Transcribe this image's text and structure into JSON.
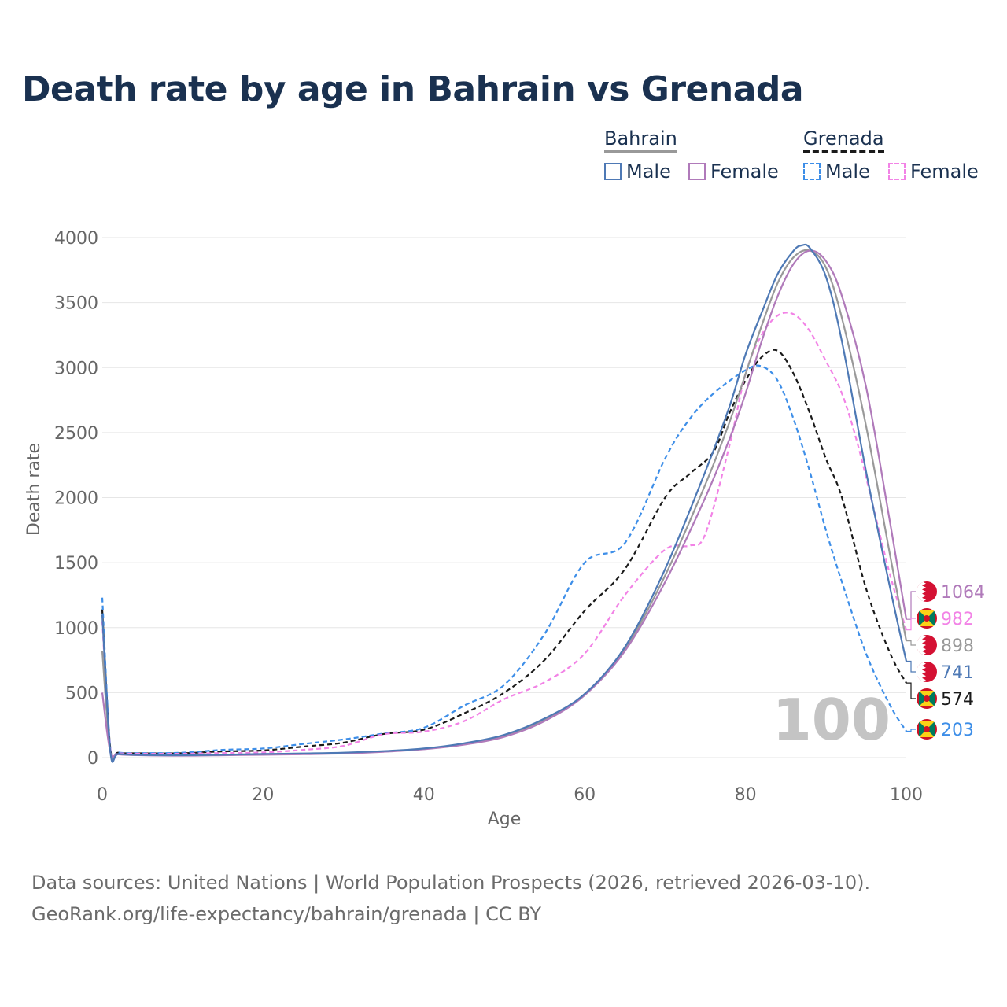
{
  "title": "Death rate by age in Bahrain vs Grenada",
  "legend": {
    "bahrain": {
      "label": "Bahrain",
      "male": "Male",
      "female": "Female"
    },
    "grenada": {
      "label": "Grenada",
      "male": "Male",
      "female": "Female"
    }
  },
  "colors": {
    "bahrain_male": "#4e79b5",
    "bahrain_female": "#b07aba",
    "bahrain_total": "#999999",
    "grenada_male": "#3d8ee8",
    "grenada_female": "#f283e6",
    "grenada_total": "#1a1a1a",
    "grid": "#e6e6e6",
    "axis_text": "#666666"
  },
  "footer": {
    "line1": "Data sources: United Nations | World Population Prospects (2026, retrieved 2026-03-10).",
    "line2": "GeoRank.org/life-expectancy/bahrain/grenada | CC BY"
  },
  "chart_data": {
    "type": "line",
    "title": "Death rate by age in Bahrain vs Grenada",
    "xlabel": "Age",
    "ylabel": "Death rate",
    "xlim": [
      0,
      100
    ],
    "ylim": [
      0,
      4000
    ],
    "xticks": [
      "0",
      "20",
      "40",
      "60",
      "80",
      "100"
    ],
    "yticks": [
      "0",
      "500",
      "1000",
      "1500",
      "2000",
      "2500",
      "3000",
      "3500",
      "4000"
    ],
    "watermark": "100",
    "series": [
      {
        "name": "Bahrain Male",
        "country": "Bahrain",
        "sex": "Male",
        "color": "#4e79b5",
        "dash": false,
        "end_label": "741",
        "points": [
          [
            0,
            1100
          ],
          [
            1,
            50
          ],
          [
            2,
            28
          ],
          [
            5,
            20
          ],
          [
            10,
            18
          ],
          [
            15,
            22
          ],
          [
            20,
            28
          ],
          [
            25,
            32
          ],
          [
            30,
            38
          ],
          [
            35,
            50
          ],
          [
            40,
            70
          ],
          [
            45,
            110
          ],
          [
            50,
            175
          ],
          [
            55,
            300
          ],
          [
            60,
            490
          ],
          [
            65,
            850
          ],
          [
            70,
            1450
          ],
          [
            75,
            2200
          ],
          [
            78,
            2700
          ],
          [
            80,
            3100
          ],
          [
            82,
            3420
          ],
          [
            84,
            3720
          ],
          [
            86,
            3900
          ],
          [
            87,
            3940
          ],
          [
            88,
            3920
          ],
          [
            90,
            3700
          ],
          [
            92,
            3200
          ],
          [
            95,
            2200
          ],
          [
            98,
            1300
          ],
          [
            100,
            741
          ]
        ]
      },
      {
        "name": "Bahrain Female",
        "country": "Bahrain",
        "sex": "Female",
        "color": "#b07aba",
        "dash": false,
        "end_label": "1064",
        "points": [
          [
            0,
            500
          ],
          [
            1,
            45
          ],
          [
            2,
            25
          ],
          [
            5,
            18
          ],
          [
            10,
            15
          ],
          [
            15,
            18
          ],
          [
            20,
            22
          ],
          [
            25,
            26
          ],
          [
            30,
            32
          ],
          [
            35,
            45
          ],
          [
            40,
            65
          ],
          [
            45,
            100
          ],
          [
            50,
            160
          ],
          [
            55,
            280
          ],
          [
            60,
            480
          ],
          [
            65,
            820
          ],
          [
            70,
            1350
          ],
          [
            75,
            2000
          ],
          [
            78,
            2450
          ],
          [
            80,
            2800
          ],
          [
            82,
            3200
          ],
          [
            84,
            3550
          ],
          [
            86,
            3800
          ],
          [
            88,
            3900
          ],
          [
            90,
            3820
          ],
          [
            92,
            3550
          ],
          [
            95,
            2850
          ],
          [
            98,
            1800
          ],
          [
            100,
            1064
          ]
        ]
      },
      {
        "name": "Bahrain Total",
        "country": "Bahrain",
        "sex": "Total",
        "color": "#999999",
        "dash": false,
        "end_label": "898",
        "points": [
          [
            0,
            820
          ],
          [
            1,
            48
          ],
          [
            2,
            27
          ],
          [
            5,
            19
          ],
          [
            10,
            17
          ],
          [
            15,
            20
          ],
          [
            20,
            25
          ],
          [
            25,
            29
          ],
          [
            30,
            35
          ],
          [
            35,
            48
          ],
          [
            40,
            68
          ],
          [
            45,
            105
          ],
          [
            50,
            168
          ],
          [
            55,
            290
          ],
          [
            60,
            485
          ],
          [
            65,
            835
          ],
          [
            70,
            1400
          ],
          [
            75,
            2100
          ],
          [
            78,
            2580
          ],
          [
            80,
            2950
          ],
          [
            82,
            3320
          ],
          [
            84,
            3650
          ],
          [
            86,
            3850
          ],
          [
            88,
            3900
          ],
          [
            90,
            3770
          ],
          [
            92,
            3380
          ],
          [
            95,
            2550
          ],
          [
            98,
            1550
          ],
          [
            100,
            898
          ]
        ]
      },
      {
        "name": "Grenada Male",
        "country": "Grenada",
        "sex": "Male",
        "color": "#3d8ee8",
        "dash": true,
        "end_label": "203",
        "points": [
          [
            0,
            1230
          ],
          [
            1,
            80
          ],
          [
            2,
            40
          ],
          [
            5,
            35
          ],
          [
            10,
            38
          ],
          [
            15,
            60
          ],
          [
            20,
            70
          ],
          [
            25,
            105
          ],
          [
            30,
            140
          ],
          [
            35,
            185
          ],
          [
            40,
            230
          ],
          [
            45,
            400
          ],
          [
            50,
            560
          ],
          [
            55,
            950
          ],
          [
            60,
            1500
          ],
          [
            65,
            1650
          ],
          [
            70,
            2300
          ],
          [
            73,
            2600
          ],
          [
            76,
            2800
          ],
          [
            80,
            2980
          ],
          [
            82,
            3010
          ],
          [
            84,
            2900
          ],
          [
            86,
            2600
          ],
          [
            88,
            2200
          ],
          [
            90,
            1750
          ],
          [
            92,
            1350
          ],
          [
            95,
            800
          ],
          [
            98,
            400
          ],
          [
            100,
            203
          ]
        ]
      },
      {
        "name": "Grenada Female",
        "country": "Grenada",
        "sex": "Female",
        "color": "#f283e6",
        "dash": true,
        "end_label": "982",
        "points": [
          [
            0,
            1050
          ],
          [
            1,
            70
          ],
          [
            2,
            35
          ],
          [
            5,
            30
          ],
          [
            10,
            30
          ],
          [
            15,
            35
          ],
          [
            20,
            40
          ],
          [
            25,
            60
          ],
          [
            30,
            90
          ],
          [
            35,
            180
          ],
          [
            40,
            200
          ],
          [
            45,
            280
          ],
          [
            50,
            450
          ],
          [
            55,
            580
          ],
          [
            60,
            800
          ],
          [
            65,
            1250
          ],
          [
            70,
            1600
          ],
          [
            73,
            1630
          ],
          [
            75,
            1720
          ],
          [
            78,
            2400
          ],
          [
            80,
            2950
          ],
          [
            82,
            3250
          ],
          [
            84,
            3400
          ],
          [
            86,
            3410
          ],
          [
            88,
            3280
          ],
          [
            90,
            3050
          ],
          [
            92,
            2800
          ],
          [
            94,
            2400
          ],
          [
            96,
            1900
          ],
          [
            98,
            1400
          ],
          [
            100,
            982
          ]
        ]
      },
      {
        "name": "Grenada Total",
        "country": "Grenada",
        "sex": "Total",
        "color": "#1a1a1a",
        "dash": true,
        "end_label": "574",
        "points": [
          [
            0,
            1140
          ],
          [
            1,
            75
          ],
          [
            2,
            38
          ],
          [
            5,
            33
          ],
          [
            10,
            34
          ],
          [
            15,
            48
          ],
          [
            20,
            55
          ],
          [
            25,
            85
          ],
          [
            30,
            115
          ],
          [
            35,
            182
          ],
          [
            40,
            215
          ],
          [
            45,
            340
          ],
          [
            50,
            500
          ],
          [
            55,
            750
          ],
          [
            60,
            1130
          ],
          [
            65,
            1450
          ],
          [
            70,
            2000
          ],
          [
            73,
            2180
          ],
          [
            76,
            2350
          ],
          [
            78,
            2650
          ],
          [
            80,
            2900
          ],
          [
            82,
            3080
          ],
          [
            84,
            3130
          ],
          [
            86,
            2950
          ],
          [
            88,
            2650
          ],
          [
            90,
            2300
          ],
          [
            92,
            2000
          ],
          [
            95,
            1300
          ],
          [
            98,
            800
          ],
          [
            100,
            574
          ]
        ]
      }
    ]
  }
}
